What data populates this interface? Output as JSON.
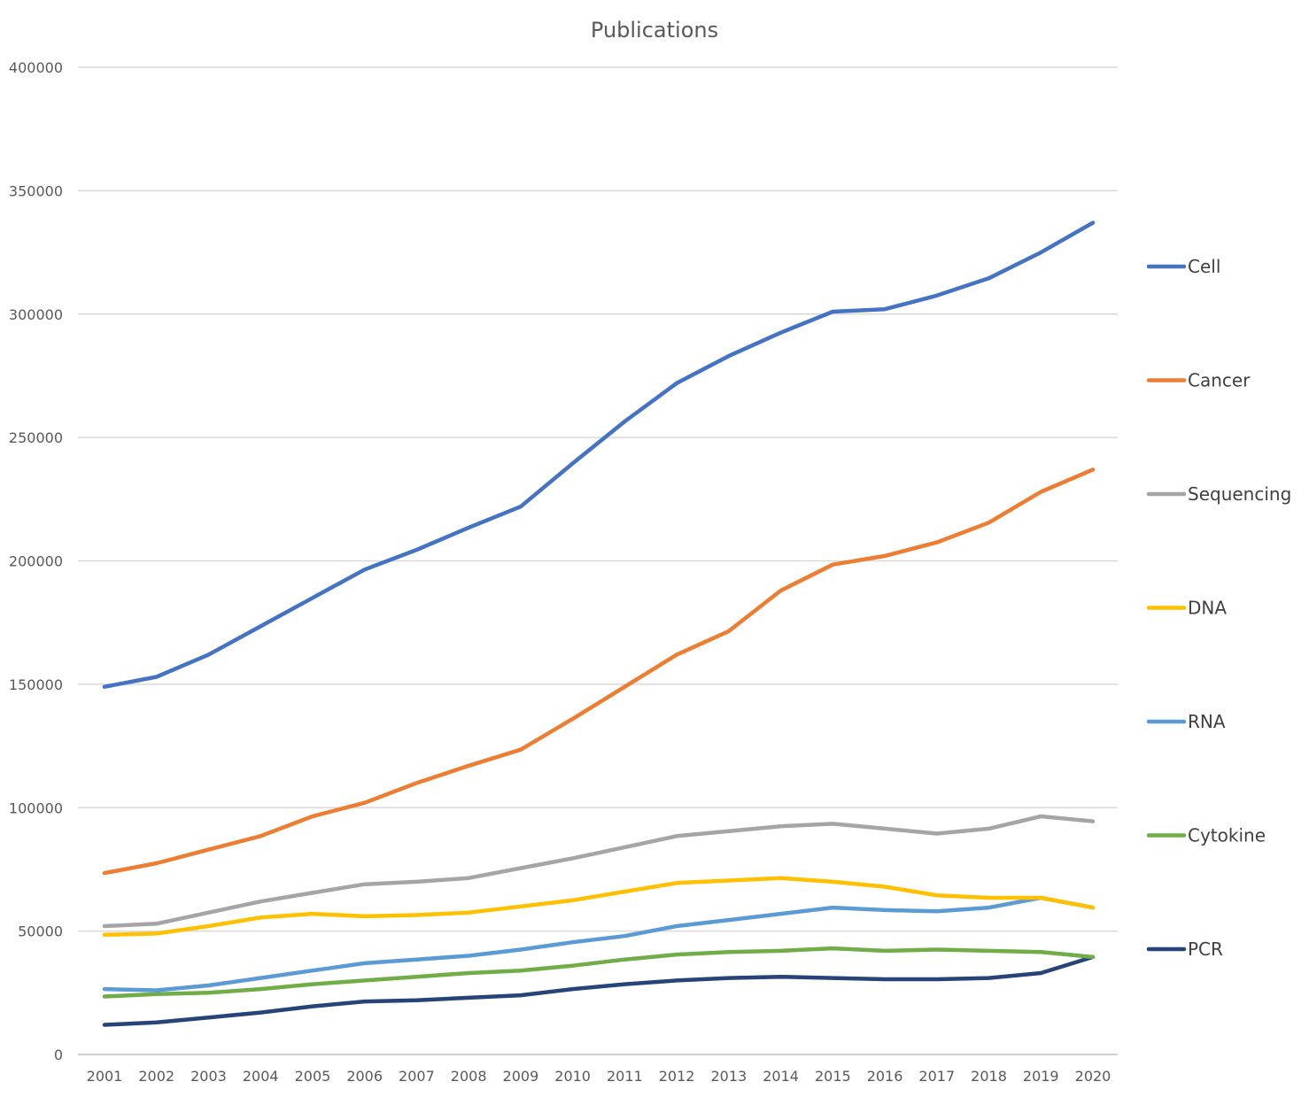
{
  "chart_data": {
    "type": "line",
    "title": "Publications",
    "xlabel": "",
    "ylabel": "",
    "ylim": [
      0,
      400000
    ],
    "yticks": [
      0,
      50000,
      100000,
      150000,
      200000,
      250000,
      300000,
      350000,
      400000
    ],
    "grid": true,
    "legend_position": "right",
    "categories": [
      "2001",
      "2002",
      "2003",
      "2004",
      "2005",
      "2006",
      "2007",
      "2008",
      "2009",
      "2010",
      "2011",
      "2012",
      "2013",
      "2014",
      "2015",
      "2016",
      "2017",
      "2018",
      "2019",
      "2020"
    ],
    "series": [
      {
        "name": "Cell",
        "color": "#4472c4",
        "values": [
          149000,
          153000,
          162000,
          173500,
          185000,
          196500,
          204500,
          213500,
          222000,
          239500,
          256500,
          272000,
          283000,
          292500,
          301000,
          302000,
          307500,
          314500,
          325000,
          337000
        ]
      },
      {
        "name": "Cancer",
        "color": "#ed7d31",
        "values": [
          73500,
          77500,
          83000,
          88500,
          96500,
          102000,
          110000,
          117000,
          123500,
          136000,
          149000,
          162000,
          171500,
          188000,
          198500,
          202000,
          207500,
          215500,
          228000,
          237000
        ]
      },
      {
        "name": "Sequencing",
        "color": "#a5a5a5",
        "values": [
          52000,
          53000,
          57500,
          62000,
          65500,
          69000,
          70000,
          71500,
          75500,
          79500,
          84000,
          88500,
          90500,
          92500,
          93500,
          91500,
          89500,
          91500,
          96500,
          94500
        ]
      },
      {
        "name": "DNA",
        "color": "#ffc000",
        "values": [
          48500,
          49000,
          52000,
          55500,
          57000,
          56000,
          56500,
          57500,
          60000,
          62500,
          66000,
          69500,
          70500,
          71500,
          70000,
          68000,
          64500,
          63500,
          63500,
          59500
        ]
      },
      {
        "name": "RNA",
        "color": "#5b9bd5",
        "values": [
          26500,
          26000,
          28000,
          31000,
          34000,
          37000,
          38500,
          40000,
          42500,
          45500,
          48000,
          52000,
          54500,
          57000,
          59500,
          58500,
          58000,
          59500,
          63500,
          59500
        ]
      },
      {
        "name": "Cytokine",
        "color": "#70ad47",
        "values": [
          23500,
          24500,
          25000,
          26500,
          28500,
          30000,
          31500,
          33000,
          34000,
          36000,
          38500,
          40500,
          41500,
          42000,
          43000,
          42000,
          42500,
          42000,
          41500,
          39500
        ]
      },
      {
        "name": "PCR",
        "color": "#264478",
        "values": [
          12000,
          13000,
          15000,
          17000,
          19500,
          21500,
          22000,
          23000,
          24000,
          26500,
          28500,
          30000,
          31000,
          31500,
          31000,
          30500,
          30500,
          31000,
          33000,
          39500
        ]
      }
    ]
  }
}
